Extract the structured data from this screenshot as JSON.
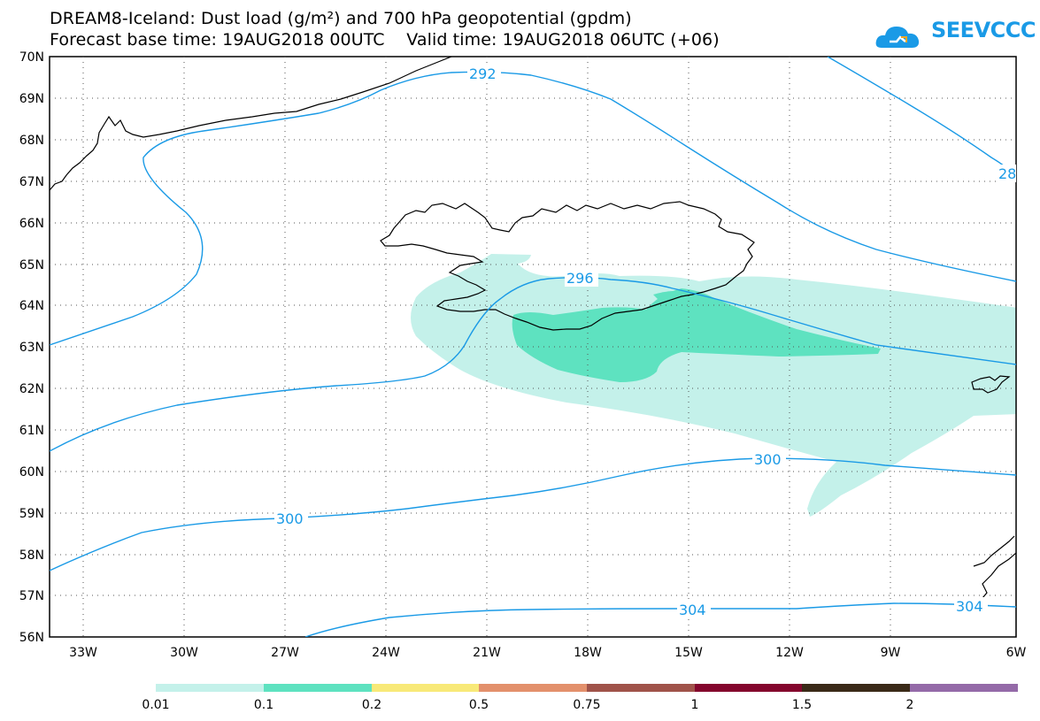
{
  "header": {
    "title_line1": "DREAM8-Iceland: Dust load (g/m²) and 700 hPa geopotential (gpdm)",
    "title_line2": "Forecast base time: 19AUG2018 00UTC    Valid time: 19AUG2018 06UTC (+06)"
  },
  "logo": {
    "text": "SEEVCCC",
    "color": "#1a9ae6"
  },
  "map": {
    "lat_labels": [
      "70N",
      "69N",
      "68N",
      "67N",
      "66N",
      "65N",
      "64N",
      "63N",
      "62N",
      "61N",
      "60N",
      "59N",
      "58N",
      "57N",
      "56N"
    ],
    "lon_labels": [
      "33W",
      "30W",
      "27W",
      "24W",
      "21W",
      "18W",
      "15W",
      "12W",
      "9W",
      "6W"
    ],
    "contour_labels": [
      "292",
      "296",
      "300",
      "300",
      "304",
      "304",
      "28"
    ],
    "contour_color": "#1a9ae6",
    "dust_low_color": "#c4f1ea",
    "dust_mid_color": "#5ee2c0"
  },
  "colorbar": {
    "labels": [
      "0.01",
      "0.1",
      "0.2",
      "0.5",
      "0.75",
      "1",
      "1.5",
      "2"
    ],
    "colors": [
      "#c4f1ea",
      "#5ee2c0",
      "#f8e978",
      "#e3906c",
      "#a0534a",
      "#84062d",
      "#3a2a18",
      "#946aa8"
    ]
  }
}
